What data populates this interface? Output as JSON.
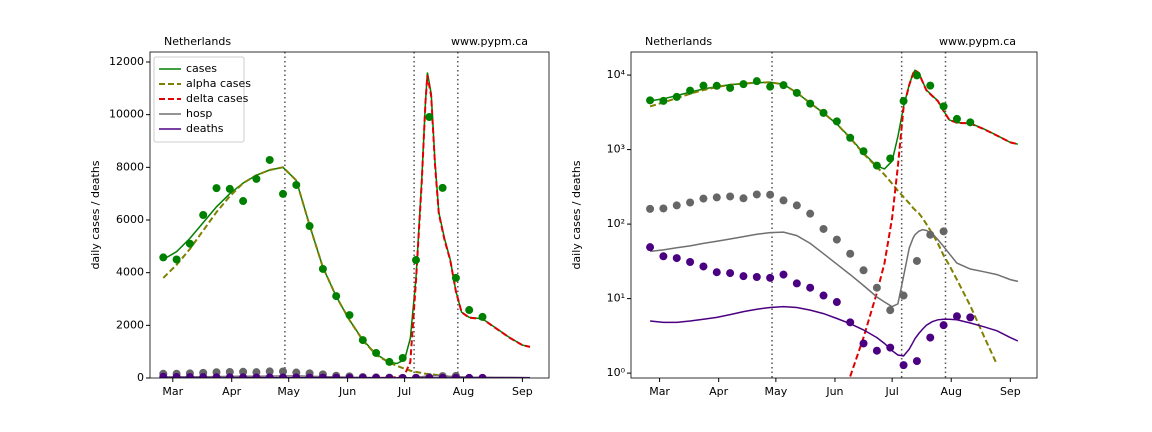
{
  "chart_data": [
    {
      "type": "line",
      "annotations": [
        "Netherlands",
        "www.pypm.ca"
      ],
      "ylabel": "daily cases / deaths",
      "xlim": [
        48,
        258
      ],
      "ylim": [
        0,
        12380
      ],
      "xticks": [
        {
          "value": 60,
          "label": "Mar"
        },
        {
          "value": 91,
          "label": "Apr"
        },
        {
          "value": 121,
          "label": "May"
        },
        {
          "value": 152,
          "label": "Jun"
        },
        {
          "value": 182,
          "label": "Jul"
        },
        {
          "value": 213,
          "label": "Aug"
        },
        {
          "value": 244,
          "label": "Sep"
        }
      ],
      "yticks": [
        0,
        2000,
        4000,
        6000,
        8000,
        10000,
        12000
      ],
      "legend": "upper left",
      "vlines": [
        119,
        187,
        210
      ],
      "x": [
        55,
        62,
        69,
        76,
        83,
        90,
        97,
        104,
        111,
        118,
        125,
        132,
        139,
        146,
        153,
        160,
        167,
        174,
        178,
        182,
        185,
        188,
        191,
        193,
        194,
        196,
        198,
        200,
        203,
        206,
        209,
        212,
        216,
        223,
        230,
        237,
        244,
        248
      ],
      "series": [
        {
          "name": "cases",
          "color": "#008000",
          "dash": false,
          "values": [
            4500,
            4800,
            5300,
            5900,
            6500,
            7000,
            7400,
            7700,
            7900,
            8000,
            7500,
            5800,
            4200,
            3100,
            2200,
            1450,
            900,
            600,
            550,
            700,
            1500,
            3800,
            7500,
            10500,
            11600,
            10800,
            8200,
            6300,
            5300,
            4500,
            3300,
            2500,
            2300,
            2250,
            1900,
            1550,
            1250,
            1180
          ]
        },
        {
          "name": "alpha cases",
          "color": "#808000",
          "dash": true,
          "values": [
            3800,
            4300,
            4900,
            5600,
            6300,
            6900,
            7400,
            7700,
            7900,
            8000,
            7500,
            5800,
            4200,
            3100,
            2200,
            1430,
            880,
            580,
            460,
            350,
            280,
            230,
            190,
            165,
            155,
            140,
            120,
            100,
            75,
            55,
            38,
            28,
            18,
            8,
            3.2,
            1.3,
            null,
            null
          ]
        },
        {
          "name": "delta cases",
          "color": "#e00000",
          "dash": true,
          "values": [
            null,
            null,
            null,
            null,
            null,
            null,
            null,
            null,
            null,
            null,
            null,
            null,
            null,
            null,
            null,
            0.9,
            3,
            12,
            30,
            120,
            600,
            3700,
            7400,
            10500,
            11500,
            10700,
            8100,
            6250,
            5250,
            4480,
            3290,
            2500,
            2290,
            2240,
            1890,
            1540,
            1250,
            1180
          ]
        },
        {
          "name": "hosp",
          "color": "#707070",
          "dash": false,
          "values": [
            43,
            45,
            48,
            51,
            55,
            59,
            63,
            68,
            73,
            77,
            78,
            70,
            55,
            40,
            29,
            21,
            15,
            10.5,
            9,
            7.8,
            8.5,
            20,
            48,
            65,
            72,
            80,
            84,
            82,
            75,
            62,
            50,
            40,
            30,
            25,
            23,
            21,
            18,
            17
          ]
        },
        {
          "name": "deaths",
          "color": "#4b0082",
          "dash": false,
          "values": [
            5.0,
            4.8,
            4.8,
            5.0,
            5.3,
            5.6,
            6.1,
            6.7,
            7.2,
            7.6,
            7.8,
            7.6,
            7.0,
            6.3,
            5.4,
            4.6,
            3.8,
            3.0,
            2.5,
            2.0,
            1.75,
            1.7,
            2.1,
            2.6,
            2.9,
            3.4,
            3.9,
            4.4,
            4.9,
            5.2,
            5.3,
            5.3,
            5.2,
            4.7,
            4.2,
            3.7,
            3.0,
            2.7
          ]
        }
      ],
      "points": [
        {
          "color": "#008000",
          "x": [
            55,
            62,
            69,
            76,
            83,
            90,
            97,
            104,
            111,
            118,
            125,
            132,
            139,
            146,
            153,
            160,
            167,
            174,
            181,
            188,
            195,
            202,
            209,
            216,
            223
          ],
          "values": [
            4580,
            4500,
            5100,
            6190,
            7210,
            7180,
            6720,
            7560,
            8280,
            6990,
            7330,
            5770,
            4140,
            3110,
            2390,
            1440,
            950,
            610,
            760,
            4480,
            9910,
            7220,
            3800,
            2580,
            2320
          ]
        },
        {
          "color": "#666666",
          "x": [
            55,
            62,
            69,
            76,
            83,
            90,
            97,
            104,
            111,
            118,
            125,
            132,
            139,
            146,
            153,
            160,
            167,
            174,
            181,
            188,
            195,
            202,
            209
          ],
          "values": [
            160,
            162,
            178,
            195,
            220,
            228,
            235,
            222,
            250,
            248,
            208,
            178,
            138,
            86,
            62,
            40,
            24,
            14,
            7,
            11,
            32,
            72,
            80
          ]
        },
        {
          "color": "#4b0082",
          "x": [
            55,
            62,
            69,
            76,
            83,
            90,
            97,
            104,
            111,
            118,
            125,
            132,
            139,
            146,
            153,
            160,
            167,
            174,
            181,
            188,
            195,
            202,
            209,
            216,
            223
          ],
          "values": [
            49,
            37,
            35,
            31,
            27,
            22.6,
            22,
            20,
            19.5,
            19,
            21,
            16,
            14,
            11,
            9,
            4.8,
            2.5,
            2.0,
            2.2,
            1.28,
            1.45,
            3,
            4.4,
            5.8,
            5.6
          ]
        }
      ]
    },
    {
      "type": "line",
      "annotations": [
        "Netherlands",
        "www.pypm.ca"
      ],
      "ylabel": "daily cases / deaths",
      "xlim": [
        45,
        258
      ],
      "ylim": [
        0.86,
        20400
      ],
      "yscale": "log",
      "xticks": [
        {
          "value": 60,
          "label": "Mar"
        },
        {
          "value": 91,
          "label": "Apr"
        },
        {
          "value": 121,
          "label": "May"
        },
        {
          "value": 152,
          "label": "Jun"
        },
        {
          "value": 182,
          "label": "Jul"
        },
        {
          "value": 213,
          "label": "Aug"
        },
        {
          "value": 244,
          "label": "Sep"
        }
      ],
      "yticks": [
        {
          "value": 1,
          "label": "10⁰"
        },
        {
          "value": 10,
          "label": "10¹"
        },
        {
          "value": 100,
          "label": "10²"
        },
        {
          "value": 1000,
          "label": "10³"
        },
        {
          "value": 10000,
          "label": "10⁴"
        }
      ],
      "vlines": [
        119,
        187,
        210
      ],
      "x": [
        55,
        62,
        69,
        76,
        83,
        90,
        97,
        104,
        111,
        118,
        125,
        132,
        139,
        146,
        153,
        160,
        167,
        174,
        178,
        182,
        185,
        188,
        191,
        193,
        194,
        196,
        198,
        200,
        203,
        206,
        209,
        212,
        216,
        223,
        230,
        237,
        244,
        248
      ],
      "series": [
        {
          "color": "#008000",
          "dash": false,
          "values": [
            4500,
            4800,
            5300,
            5900,
            6500,
            7000,
            7400,
            7700,
            7900,
            8000,
            7500,
            5800,
            4200,
            3100,
            2200,
            1450,
            900,
            600,
            550,
            700,
            1500,
            3800,
            7500,
            10500,
            11600,
            10800,
            8200,
            6300,
            5300,
            4500,
            3300,
            2500,
            2300,
            2250,
            1900,
            1550,
            1250,
            1180
          ]
        },
        {
          "color": "#808000",
          "dash": true,
          "values": [
            3800,
            4300,
            4900,
            5600,
            6300,
            6900,
            7400,
            7700,
            7900,
            8000,
            7500,
            5800,
            4200,
            3100,
            2200,
            1430,
            880,
            580,
            460,
            350,
            280,
            230,
            190,
            165,
            155,
            140,
            120,
            100,
            75,
            55,
            38,
            28,
            18,
            8,
            3.2,
            1.3,
            null,
            null
          ]
        },
        {
          "color": "#e00000",
          "dash": true,
          "values": [
            null,
            null,
            null,
            null,
            null,
            null,
            null,
            null,
            null,
            null,
            null,
            null,
            null,
            null,
            null,
            0.9,
            3,
            12,
            30,
            120,
            600,
            3700,
            7400,
            10500,
            11500,
            10700,
            8100,
            6250,
            5250,
            4480,
            3290,
            2500,
            2290,
            2240,
            1890,
            1540,
            1250,
            1180
          ]
        },
        {
          "color": "#707070",
          "dash": false,
          "values": [
            43,
            45,
            48,
            51,
            55,
            59,
            63,
            68,
            73,
            77,
            78,
            70,
            55,
            40,
            29,
            21,
            15,
            10.5,
            9,
            7.8,
            8.5,
            20,
            48,
            65,
            72,
            80,
            84,
            82,
            75,
            62,
            50,
            40,
            30,
            25,
            23,
            21,
            18,
            17
          ]
        },
        {
          "color": "#4b0082",
          "dash": false,
          "values": [
            5.0,
            4.8,
            4.8,
            5.0,
            5.3,
            5.6,
            6.1,
            6.7,
            7.2,
            7.6,
            7.8,
            7.6,
            7.0,
            6.3,
            5.4,
            4.6,
            3.8,
            3.0,
            2.5,
            2.0,
            1.75,
            1.7,
            2.1,
            2.6,
            2.9,
            3.4,
            3.9,
            4.4,
            4.9,
            5.2,
            5.3,
            5.3,
            5.2,
            4.7,
            4.2,
            3.7,
            3.0,
            2.7
          ]
        }
      ],
      "points": [
        {
          "color": "#008000",
          "x": [
            55,
            62,
            69,
            76,
            83,
            90,
            97,
            104,
            111,
            118,
            125,
            132,
            139,
            146,
            153,
            160,
            167,
            174,
            181,
            188,
            195,
            202,
            209,
            216,
            223
          ],
          "values": [
            4580,
            4500,
            5100,
            6190,
            7210,
            7180,
            6720,
            7560,
            8280,
            6990,
            7330,
            5770,
            4140,
            3110,
            2390,
            1440,
            950,
            610,
            760,
            4480,
            9910,
            7220,
            3800,
            2580,
            2320
          ]
        },
        {
          "color": "#666666",
          "x": [
            55,
            62,
            69,
            76,
            83,
            90,
            97,
            104,
            111,
            118,
            125,
            132,
            139,
            146,
            153,
            160,
            167,
            174,
            181,
            188,
            195,
            202,
            209
          ],
          "values": [
            160,
            162,
            178,
            195,
            220,
            228,
            235,
            222,
            250,
            248,
            208,
            178,
            138,
            86,
            62,
            40,
            24,
            14,
            7,
            11,
            32,
            72,
            80
          ]
        },
        {
          "color": "#4b0082",
          "x": [
            55,
            62,
            69,
            76,
            83,
            90,
            97,
            104,
            111,
            118,
            125,
            132,
            139,
            146,
            153,
            160,
            167,
            174,
            181,
            188,
            195,
            202,
            209,
            216,
            223
          ],
          "values": [
            49,
            37,
            35,
            31,
            27,
            22.6,
            22,
            20,
            19.5,
            19,
            21,
            16,
            14,
            11,
            9,
            4.8,
            2.5,
            2.0,
            2.2,
            1.28,
            1.45,
            3,
            4.4,
            5.8,
            5.6
          ]
        }
      ]
    }
  ]
}
